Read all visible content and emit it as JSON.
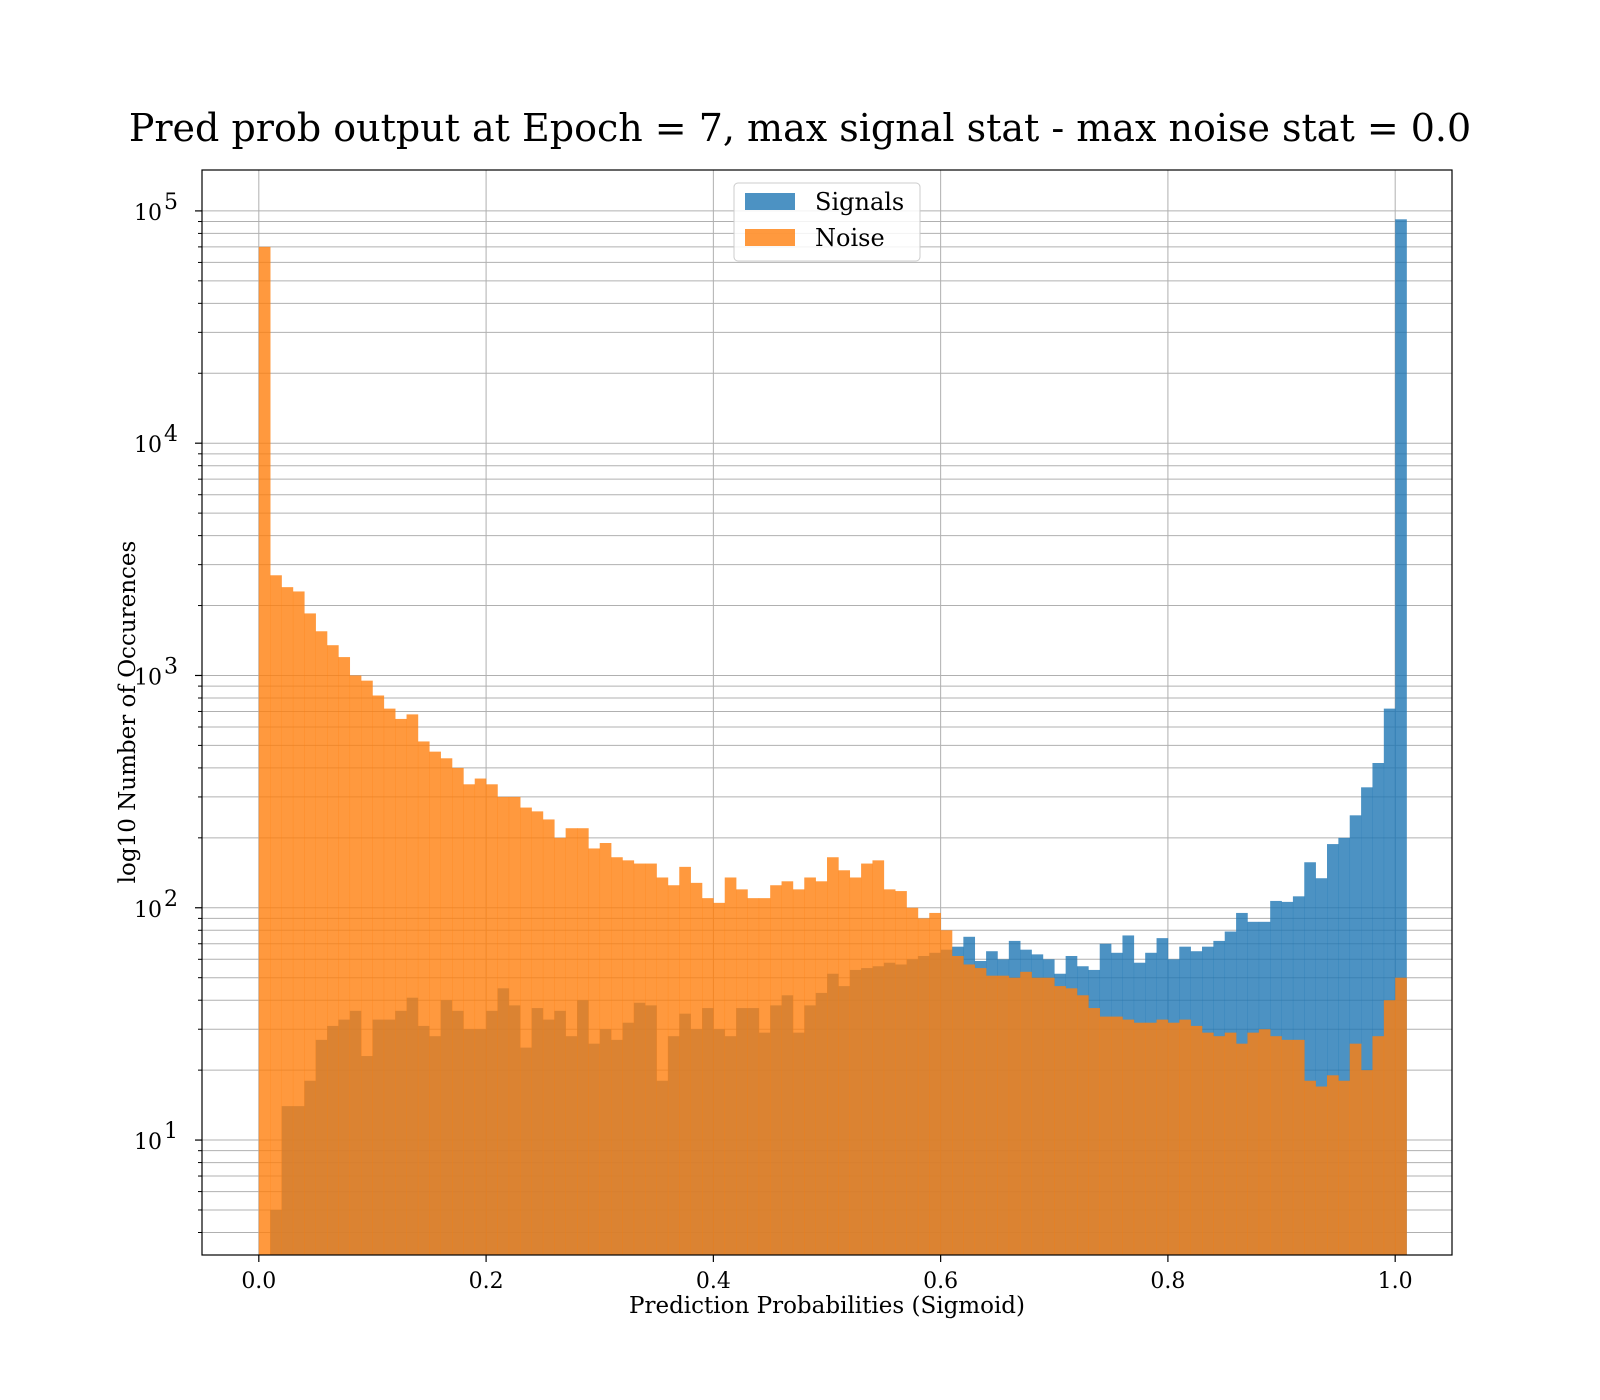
{
  "chart_data": {
    "type": "histogram",
    "title": "Pred prob output at Epoch = 7, max signal stat - max noise stat = 0.0",
    "xlabel": "Prediction Probabilities (Sigmoid)",
    "ylabel": "log10 Number of Occurences",
    "yscale": "log",
    "xlim": [
      -0.05,
      1.05
    ],
    "ylim": [
      3.2,
      150000
    ],
    "grid": true,
    "legend_placement": "upper center",
    "bin_start": 0.0,
    "bin_width": 0.01,
    "x_ticks": [
      {
        "value": 0.0,
        "label": "0.0"
      },
      {
        "value": 0.2,
        "label": "0.2"
      },
      {
        "value": 0.4,
        "label": "0.4"
      },
      {
        "value": 0.6,
        "label": "0.6"
      },
      {
        "value": 0.8,
        "label": "0.8"
      },
      {
        "value": 1.0,
        "label": "1.0"
      }
    ],
    "y_ticks": [
      {
        "value": 10,
        "base": "10",
        "exp": "1"
      },
      {
        "value": 100,
        "base": "10",
        "exp": "2"
      },
      {
        "value": 1000,
        "base": "10",
        "exp": "3"
      },
      {
        "value": 10000,
        "base": "10",
        "exp": "4"
      },
      {
        "value": 100000,
        "base": "10",
        "exp": "5"
      }
    ],
    "series": [
      {
        "name": "Signals",
        "color": "#1f77b4",
        "opacity": 0.8,
        "values": [
          0,
          5,
          14,
          14,
          18,
          27,
          31,
          33,
          36,
          23,
          33,
          33,
          36,
          41,
          31,
          28,
          40,
          36,
          30,
          30,
          36,
          45,
          38,
          25,
          37,
          33,
          36,
          28,
          40,
          26,
          30,
          27,
          32,
          39,
          38,
          18,
          28,
          35,
          30,
          37,
          30,
          28,
          37,
          37,
          29,
          38,
          42,
          29,
          38,
          43,
          52,
          46,
          54,
          55,
          56,
          58,
          57,
          60,
          62,
          64,
          66,
          68,
          75,
          59,
          65,
          60,
          72,
          66,
          63,
          60,
          52,
          62,
          56,
          54,
          70,
          64,
          76,
          58,
          64,
          74,
          60,
          68,
          65,
          68,
          72,
          79,
          95,
          87,
          87,
          107,
          106,
          112,
          157,
          134,
          188,
          200,
          250,
          330,
          420,
          720,
          92000
        ]
      },
      {
        "name": "Noise",
        "color": "#ff7f0e",
        "opacity": 0.8,
        "values": [
          70000,
          2700,
          2400,
          2300,
          1850,
          1550,
          1350,
          1200,
          1000,
          950,
          820,
          720,
          650,
          680,
          520,
          470,
          440,
          400,
          340,
          360,
          340,
          300,
          300,
          270,
          260,
          240,
          200,
          220,
          220,
          180,
          190,
          165,
          160,
          155,
          155,
          135,
          125,
          150,
          128,
          110,
          105,
          135,
          120,
          110,
          110,
          125,
          130,
          120,
          135,
          130,
          165,
          145,
          135,
          155,
          160,
          120,
          118,
          100,
          90,
          95,
          80,
          62,
          57,
          55,
          51,
          51,
          50,
          53,
          50,
          50,
          46,
          45,
          42,
          37,
          34,
          34,
          33,
          32,
          32,
          33,
          32,
          33,
          31,
          29,
          28,
          29,
          26,
          29,
          30,
          28,
          27,
          27,
          18,
          17,
          19,
          18,
          26,
          20,
          28,
          40,
          50
        ]
      }
    ]
  }
}
